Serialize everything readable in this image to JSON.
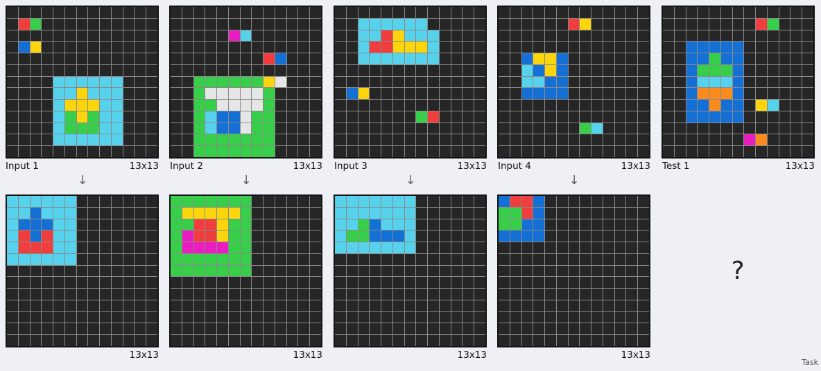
{
  "palette": {
    "0": "#262626",
    "B": "#1570d6",
    "R": "#f03e3e",
    "G": "#37cf4a",
    "Y": "#fcd50d",
    "W": "#e6e6e6",
    "M": "#ea1ec0",
    "O": "#fb8a1f",
    "C": "#56d2ec"
  },
  "grids": {
    "in1": [
      "0000000000000",
      "0RG0000000000",
      "0000000000000",
      "0BY0000000000",
      "0000000000000",
      "0000000000000",
      "0000CCCCCC000",
      "0000CCYCCC000",
      "0000CYYYCC000",
      "0000CGYGCC000",
      "0000CGGGCC000",
      "0000CCCCCC000",
      "0000000000000"
    ],
    "in2": [
      "0000000000000",
      "0000000000000",
      "00000MC000000",
      "0000000000000",
      "00000000RB000",
      "0000000000000",
      "00GGGGGGYW000",
      "00GWWWWWG0000",
      "00GGWWWWG0000",
      "00GCBBWGG0000",
      "00GCBBWGG0000",
      "00GGGGGGG0000",
      "00GGGGGGG0000"
    ],
    "in3": [
      "0000000000000",
      "00CCCCCC00000",
      "00CCRYCCC0000",
      "00CRRYYYC0000",
      "00CCCCCCC0000",
      "0000000000000",
      "0000000000000",
      "0BY0000000000",
      "0000000000000",
      "0000000GR0000",
      "0000000000000",
      "0000000000000",
      "0000000000000"
    ],
    "in4": [
      "0000000000000",
      "000000RY00000",
      "0000000000000",
      "0000000000000",
      "00BYYB0000000",
      "00CBYB0000000",
      "00CCBB0000000",
      "00BBBB0000000",
      "0000000000000",
      "0000000000000",
      "0000000GC0000",
      "0000000000000",
      "0000000000000"
    ],
    "test1": [
      "0000000000000",
      "00000000RG000",
      "0000000000000",
      "00BBBBB000000",
      "00BBGBB000000",
      "00BGGGB000000",
      "00BCCCB000000",
      "00BOOOB000000",
      "00BBOBB0YC000",
      "00BBBBB000000",
      "0000000000000",
      "0000000MO0000",
      "0000000000000"
    ],
    "out1": [
      "CCCCCC0000000",
      "CCBCCC0000000",
      "CBBBCC0000000",
      "CRBRCC0000000",
      "CRRRCC0000000",
      "CCCCCC0000000",
      "0000000000000",
      "0000000000000",
      "0000000000000",
      "0000000000000",
      "0000000000000",
      "0000000000000",
      "0000000000000"
    ],
    "out2": [
      "GGGGGGG000000",
      "GYYYYYG000000",
      "GGRRYGG000000",
      "GMRRYGG000000",
      "GMMMMGG000000",
      "GGGGGGG000000",
      "GGGGGGG000000",
      "0000000000000",
      "0000000000000",
      "0000000000000",
      "0000000000000",
      "0000000000000",
      "0000000000000"
    ],
    "out3": [
      "CCCCCCC000000",
      "CCCCCCC000000",
      "CCGBCCC000000",
      "CGGBBBC000000",
      "CCCCCCC000000",
      "0000000000000",
      "0000000000000",
      "0000000000000",
      "0000000000000",
      "0000000000000",
      "0000000000000",
      "0000000000000",
      "0000000000000"
    ],
    "out4": [
      "BRRB000000000",
      "GGRB000000000",
      "GGBB000000000",
      "BBBB000000000",
      "0000000000000",
      "0000000000000",
      "0000000000000",
      "0000000000000",
      "0000000000000",
      "0000000000000",
      "0000000000000",
      "0000000000000",
      "0000000000000"
    ]
  },
  "labels": {
    "in1": "Input 1",
    "in2": "Input 2",
    "in3": "Input 3",
    "in4": "Input 4",
    "test1": "Test 1",
    "size": "13x13",
    "arrow": "↓",
    "unknown": "?",
    "footer": "Task"
  }
}
